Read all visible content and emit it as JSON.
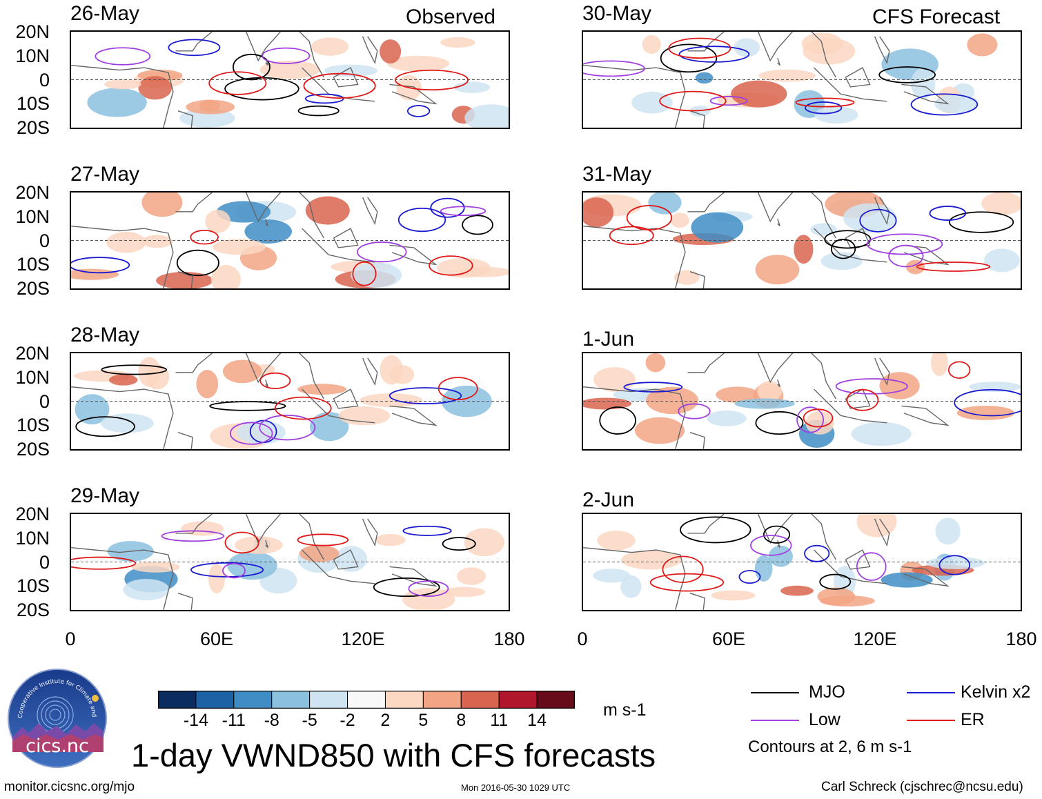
{
  "header": {
    "observed_label": "Observed",
    "forecast_label": "CFS Forecast"
  },
  "panels": {
    "left": [
      {
        "date": "26-May"
      },
      {
        "date": "27-May"
      },
      {
        "date": "28-May"
      },
      {
        "date": "29-May"
      }
    ],
    "right": [
      {
        "date": "30-May"
      },
      {
        "date": "31-May"
      },
      {
        "date": "1-Jun"
      },
      {
        "date": "2-Jun"
      }
    ]
  },
  "axes": {
    "lat_labels": [
      "20N",
      "10N",
      "0",
      "10S",
      "20S"
    ],
    "lon_labels": [
      "0",
      "60E",
      "120E",
      "180"
    ],
    "lat_range": [
      -20,
      20
    ],
    "lon_range": [
      0,
      180
    ]
  },
  "colorbar": {
    "tick_labels": [
      "-14",
      "-11",
      "-8",
      "-5",
      "-2",
      "2",
      "5",
      "8",
      "11",
      "14"
    ],
    "colors": [
      "#0b2c5e",
      "#1d62a4",
      "#3f8dc4",
      "#8bc0de",
      "#cfe4f2",
      "#f8f8f8",
      "#fcd7c2",
      "#f2a484",
      "#d9644f",
      "#b0172c",
      "#670a1a"
    ],
    "units": "m s-1"
  },
  "legend": {
    "items": [
      {
        "label": "MJO",
        "color": "#000000"
      },
      {
        "label": "Kelvin x2",
        "color": "#1a1ad0"
      },
      {
        "label": "Low",
        "color": "#a040e0"
      },
      {
        "label": "ER",
        "color": "#e01818"
      }
    ],
    "contours_note": "Contours at 2, 6 m s-1"
  },
  "title": "1-day VWND850 with CFS forecasts",
  "logo": {
    "text": "cics.nc",
    "ring_text": "Cooperative Institute for Climate and Satellites"
  },
  "footer": {
    "url": "monitor.cicsnc.org/mjo",
    "timestamp": "Mon 2016-05-30 1029 UTC",
    "author": "Carl Schreck (cjschrec@ncsu.edu)"
  }
}
